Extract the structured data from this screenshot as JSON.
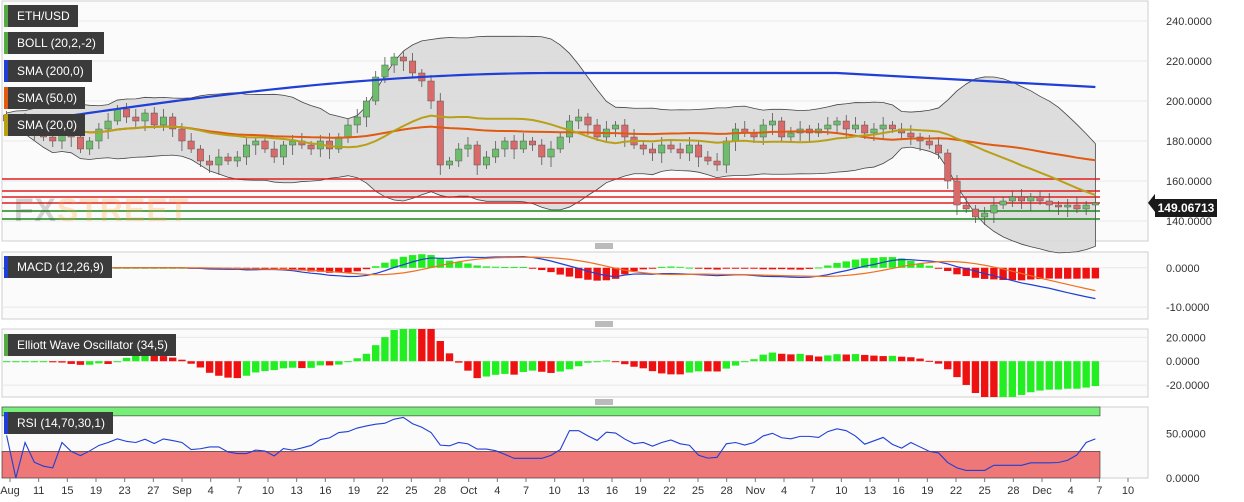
{
  "tags": {
    "symbol": "ETH/USD",
    "boll": "BOLL (20,2,-2)",
    "sma200": "SMA (200,0)",
    "sma50": "SMA (50,0)",
    "sma20": "SMA (20,0)",
    "macd": "MACD (12,26,9)",
    "ewo": "Elliott Wave Oscillator (34,5)",
    "rsi": "RSI (14,70,30,1)"
  },
  "watermark": {
    "fx": "FX",
    "street": "STREET"
  },
  "last_price": "149.06713",
  "colors": {
    "up_candle": "#6dbd6d",
    "down_candle": "#d96a6a",
    "sma200": "#1f3fd6",
    "sma50": "#e05a10",
    "sma20": "#b8a018",
    "band_fill": "#d7d7d7",
    "resistance": "#e02020",
    "support": "#1a8a1a",
    "macd_line": "#1f3fd6",
    "signal_line": "#f07020",
    "hist_up": "#22ee22",
    "hist_down": "#ee1111",
    "rsi_overbought": "#77ee77",
    "rsi_oversold": "#ee7777"
  },
  "chart_data": [
    {
      "type": "candlestick",
      "panel": "price",
      "ylim": [
        130,
        250
      ],
      "y_ticks": [
        "240.0000",
        "220.0000",
        "200.0000",
        "180.0000",
        "160.0000",
        "140.0000"
      ],
      "x_ticks": [
        "Aug",
        "11",
        "15",
        "19",
        "23",
        "27",
        "Sep",
        "4",
        "7",
        "10",
        "13",
        "16",
        "19",
        "22",
        "25",
        "28",
        "Oct",
        "4",
        "7",
        "10",
        "13",
        "16",
        "19",
        "22",
        "25",
        "28",
        "Nov",
        "4",
        "7",
        "10",
        "13",
        "16",
        "19",
        "22",
        "25",
        "28",
        "Dec",
        "4",
        "7",
        "10"
      ],
      "close": [
        190,
        188,
        190,
        185,
        182,
        180,
        190,
        182,
        176,
        180,
        186,
        190,
        196,
        192,
        190,
        194,
        188,
        192,
        186,
        180,
        176,
        170,
        168,
        172,
        170,
        172,
        178,
        180,
        176,
        172,
        178,
        180,
        178,
        176,
        180,
        176,
        182,
        188,
        192,
        200,
        212,
        218,
        222,
        220,
        214,
        210,
        200,
        168,
        170,
        176,
        178,
        168,
        172,
        176,
        180,
        176,
        180,
        178,
        172,
        176,
        182,
        190,
        192,
        188,
        182,
        186,
        188,
        182,
        178,
        176,
        174,
        178,
        176,
        174,
        178,
        172,
        170,
        168,
        180,
        186,
        184,
        182,
        188,
        190,
        182,
        184,
        186,
        184,
        186,
        188,
        190,
        186,
        188,
        184,
        186,
        188,
        186,
        184,
        182,
        180,
        178,
        174,
        160,
        148,
        146,
        142,
        144,
        148,
        150,
        152,
        150,
        152,
        150,
        148,
        147,
        148,
        146,
        148,
        149
      ],
      "resistance_levels": [
        161,
        155,
        152,
        149
      ],
      "support_levels": [
        145,
        141
      ],
      "last_price": 149.06713
    },
    {
      "type": "line+histogram",
      "panel": "MACD",
      "ylim": [
        -13,
        4
      ],
      "y_ticks": [
        "0.0000",
        "-10.0000"
      ]
    },
    {
      "type": "histogram",
      "panel": "Elliott Wave Oscillator",
      "ylim": [
        -30,
        27
      ],
      "y_ticks": [
        "20.0000",
        "0.0000",
        "-20.0000"
      ]
    },
    {
      "type": "line",
      "panel": "RSI",
      "ylim": [
        0,
        80
      ],
      "y_ticks": [
        "50.0000",
        "0.0000"
      ],
      "overbought": 70,
      "oversold": 30
    }
  ]
}
